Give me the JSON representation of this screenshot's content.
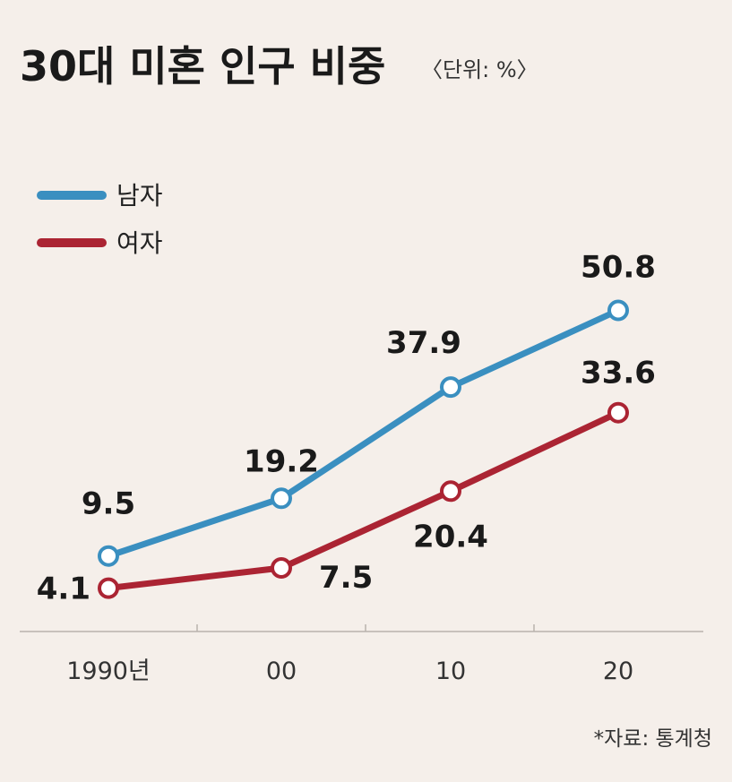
{
  "header": {
    "title": "30대 미혼 인구 비중",
    "unit": "〈단위: %〉"
  },
  "source": "*자료: 통계청",
  "colors": {
    "background": "#f5efea",
    "male": "#3a8fc0",
    "female": "#ab2433",
    "axis": "#b9b2ad"
  },
  "chart_data": {
    "type": "line",
    "categories": [
      "1990년",
      "00",
      "10",
      "20"
    ],
    "series": [
      {
        "name": "남자",
        "values": [
          9.5,
          19.2,
          37.9,
          50.8
        ]
      },
      {
        "name": "여자",
        "values": [
          4.1,
          7.5,
          20.4,
          33.6
        ]
      }
    ],
    "title": "30대 미혼 인구 비중",
    "unit": "〈단위: %〉",
    "legend_position": "top-left",
    "grid": false
  }
}
